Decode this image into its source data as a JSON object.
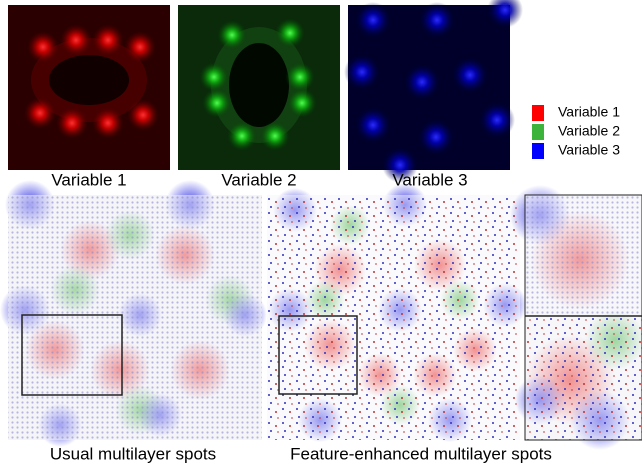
{
  "top_panels": [
    {
      "caption": "Variable 1"
    },
    {
      "caption": "Variable 2"
    },
    {
      "caption": "Variable 3"
    }
  ],
  "legend": [
    {
      "label": "Variable 1",
      "color": "#ff0000"
    },
    {
      "label": "Variable 2",
      "color": "#3cb43c"
    },
    {
      "label": "Variable 3",
      "color": "#0000ff"
    }
  ],
  "bottom_panels": [
    {
      "caption": "Usual multilayer spots"
    },
    {
      "caption": "Feature-enhanced multilayer spots"
    }
  ]
}
